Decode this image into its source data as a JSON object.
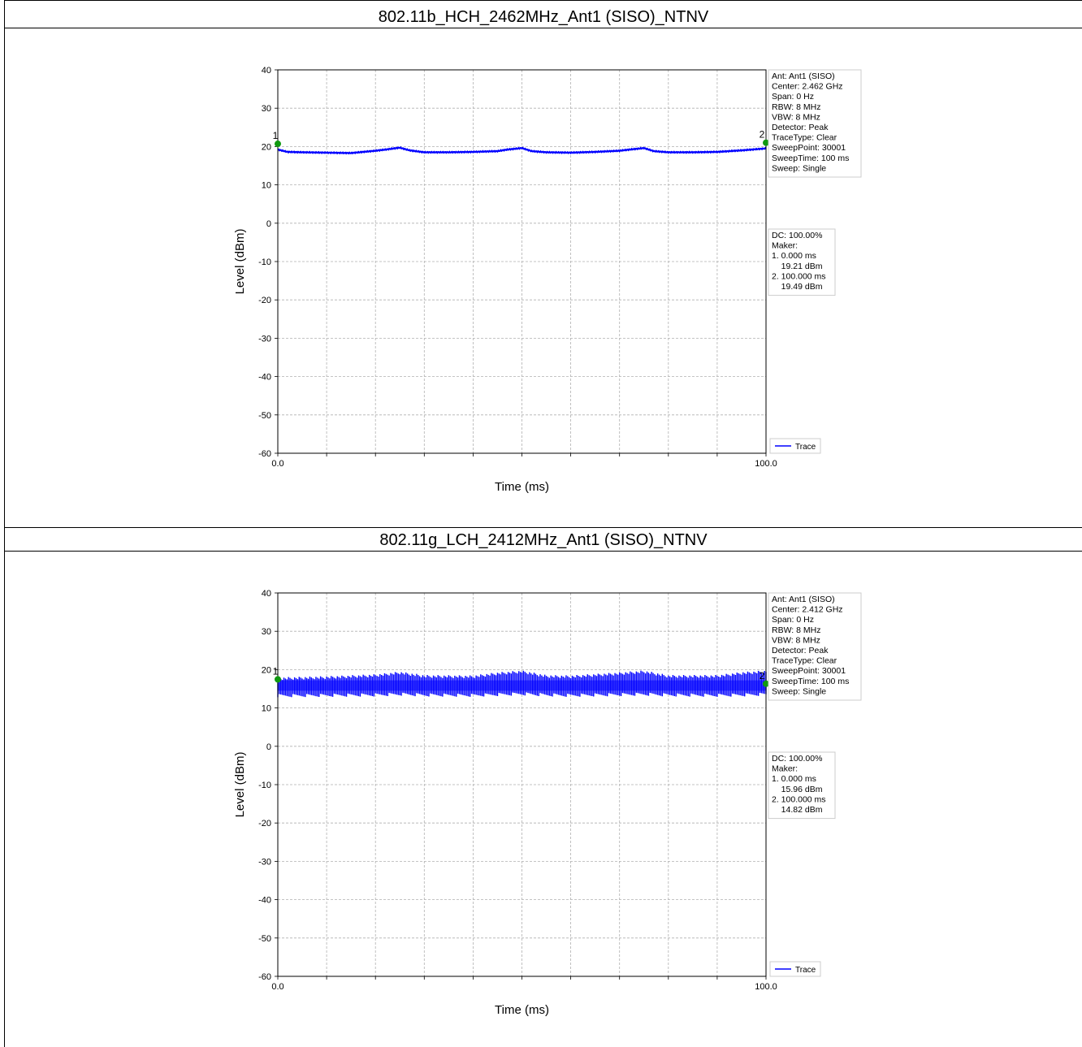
{
  "charts": [
    {
      "title": "802.11b_HCH_2462MHz_Ant1 (SISO)_NTNV",
      "xlabel": "Time (ms)",
      "ylabel": "Level (dBm)",
      "settings": [
        "Ant: Ant1 (SISO)",
        "Center: 2.462 GHz",
        "Span: 0 Hz",
        "RBW: 8 MHz",
        "VBW: 8 MHz",
        "Detector: Peak",
        "TraceType: Clear",
        "SweepPoint: 30001",
        "SweepTime: 100 ms",
        "Sweep: Single"
      ],
      "markers_box": [
        "DC: 100.00%",
        "Maker:",
        "1. 0.000 ms",
        "    19.21 dBm",
        "2. 100.000 ms",
        "    19.49 dBm"
      ],
      "legend": "Trace"
    },
    {
      "title": "802.11g_LCH_2412MHz_Ant1 (SISO)_NTNV",
      "xlabel": "Time (ms)",
      "ylabel": "Level (dBm)",
      "settings": [
        "Ant: Ant1 (SISO)",
        "Center: 2.412 GHz",
        "Span: 0 Hz",
        "RBW: 8 MHz",
        "VBW: 8 MHz",
        "Detector: Peak",
        "TraceType: Clear",
        "SweepPoint: 30001",
        "SweepTime: 100 ms",
        "Sweep: Single"
      ],
      "markers_box": [
        "DC: 100.00%",
        "Maker:",
        "1. 0.000 ms",
        "    15.96 dBm",
        "2. 100.000 ms",
        "    14.82 dBm"
      ],
      "legend": "Trace"
    }
  ],
  "chart_data": [
    {
      "type": "line",
      "xlim": [
        0,
        100
      ],
      "ylim": [
        -60,
        40
      ],
      "xticklabels": [
        {
          "value": 0,
          "label": "0.0"
        },
        {
          "value": 100,
          "label": "100.0"
        }
      ],
      "yticks": [
        40,
        30,
        20,
        10,
        0,
        -10,
        -20,
        -30,
        -40,
        -50,
        -60
      ],
      "grid": true,
      "legend_position": "bottom-right",
      "series": [
        {
          "name": "Trace",
          "color": "#0000ff",
          "x": [
            0,
            2,
            5,
            10,
            15,
            20,
            22,
            25,
            27,
            30,
            35,
            40,
            45,
            47,
            50,
            52,
            55,
            60,
            65,
            70,
            72,
            75,
            77,
            80,
            85,
            90,
            95,
            100
          ],
          "y": [
            19.2,
            18.6,
            18.5,
            18.4,
            18.3,
            18.9,
            19.2,
            19.7,
            19.0,
            18.5,
            18.5,
            18.6,
            18.8,
            19.2,
            19.6,
            18.8,
            18.5,
            18.4,
            18.6,
            18.9,
            19.2,
            19.6,
            18.8,
            18.5,
            18.5,
            18.6,
            19.0,
            19.5
          ],
          "envelope": "smooth"
        }
      ],
      "markers": [
        {
          "label": "1",
          "x": 0,
          "y": 19.21
        },
        {
          "label": "2",
          "x": 100,
          "y": 19.49
        }
      ]
    },
    {
      "type": "line",
      "xlim": [
        0,
        100
      ],
      "ylim": [
        -60,
        40
      ],
      "xticklabels": [
        {
          "value": 0,
          "label": "0.0"
        },
        {
          "value": 100,
          "label": "100.0"
        }
      ],
      "yticks": [
        40,
        30,
        20,
        10,
        0,
        -10,
        -20,
        -30,
        -40,
        -50,
        -60
      ],
      "grid": true,
      "legend_position": "bottom-right",
      "series": [
        {
          "name": "Trace",
          "color": "#0000ff",
          "x": [
            0,
            10,
            20,
            25,
            30,
            40,
            45,
            50,
            55,
            60,
            70,
            75,
            80,
            90,
            95,
            100
          ],
          "y_max": [
            18.0,
            18.3,
            18.8,
            19.5,
            18.6,
            18.5,
            19.3,
            19.8,
            18.6,
            18.5,
            19.3,
            19.8,
            18.6,
            18.6,
            19.4,
            19.8
          ],
          "y_min": [
            12.8,
            12.9,
            13.0,
            13.2,
            13.0,
            12.9,
            13.1,
            13.3,
            13.0,
            12.9,
            13.1,
            13.2,
            13.0,
            12.9,
            13.0,
            13.2
          ],
          "envelope": "noisy"
        }
      ],
      "markers": [
        {
          "label": "1",
          "x": 0,
          "y": 15.96
        },
        {
          "label": "2",
          "x": 100,
          "y": 14.82
        }
      ]
    }
  ]
}
